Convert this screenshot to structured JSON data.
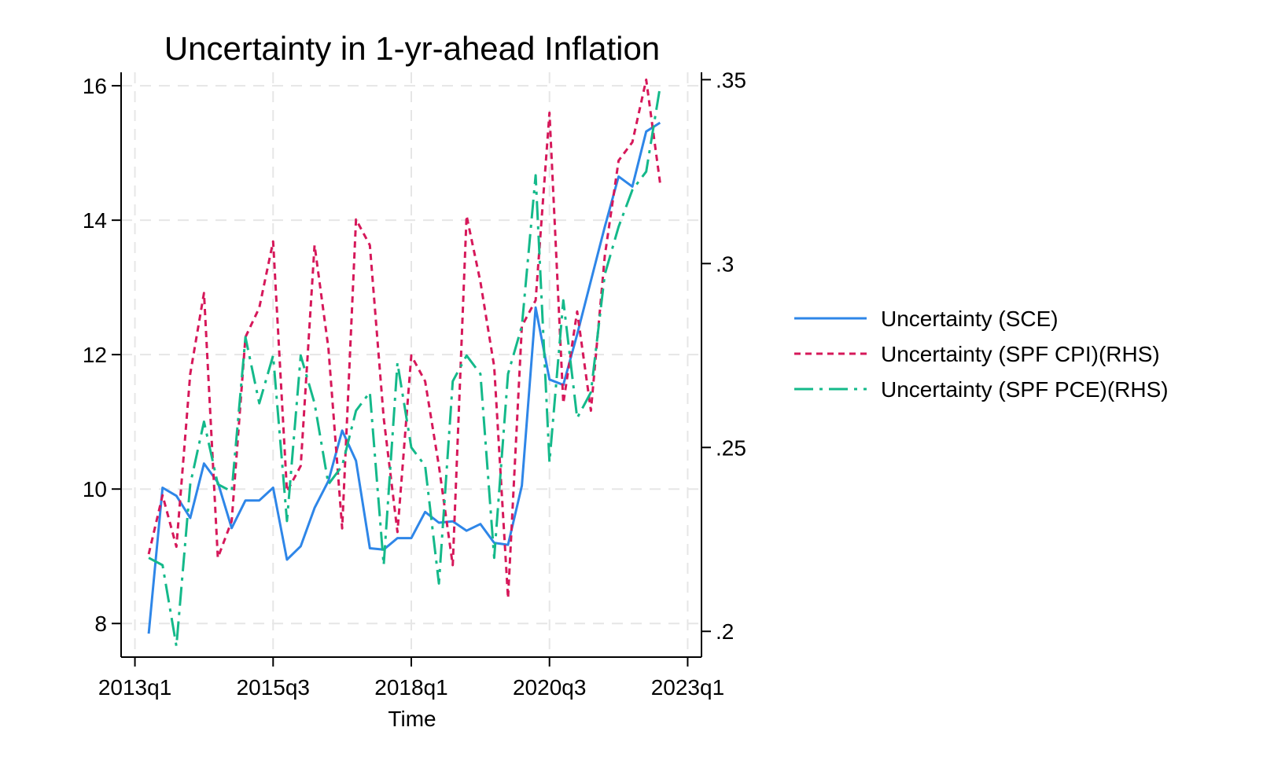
{
  "chart_data": {
    "type": "line",
    "title": "Uncertainty in 1-yr-ahead Inflation",
    "xlabel": "Time",
    "ylabel_left": "",
    "ylabel_right": "",
    "x_tick_labels": [
      "2013q1",
      "2015q3",
      "2018q1",
      "2020q3",
      "2023q1"
    ],
    "y_left_ticks": [
      "8",
      "10",
      "12",
      "14",
      "16"
    ],
    "y_right_ticks": [
      ".2",
      ".25",
      ".3",
      ".35"
    ],
    "y_left_range": [
      7.5,
      16.2
    ],
    "y_right_range": [
      0.193,
      0.352
    ],
    "x_range": [
      2012.75,
      2023.25
    ],
    "grid": true,
    "legend_position": "right",
    "colors": {
      "sce": "#2e86e8",
      "spf_cpi": "#d6185a",
      "spf_pce": "#14b98a"
    },
    "series": [
      {
        "key": "sce",
        "name": "Uncertainty (SCE)",
        "axis": "left",
        "style": "solid",
        "x": [
          2013.25,
          2013.5,
          2013.75,
          2014.0,
          2014.25,
          2014.5,
          2014.75,
          2015.0,
          2015.25,
          2015.5,
          2015.75,
          2016.0,
          2016.25,
          2016.5,
          2016.75,
          2017.0,
          2017.25,
          2017.5,
          2017.75,
          2018.0,
          2018.25,
          2018.5,
          2018.75,
          2019.0,
          2019.25,
          2019.5,
          2019.75,
          2020.0,
          2020.25,
          2020.5,
          2020.75,
          2021.0,
          2021.25,
          2021.5,
          2021.75,
          2022.0,
          2022.25,
          2022.5
        ],
        "values": [
          7.85,
          10.02,
          9.9,
          9.57,
          10.38,
          10.1,
          9.42,
          9.83,
          9.83,
          10.02,
          8.95,
          9.15,
          9.72,
          10.12,
          10.87,
          10.42,
          9.12,
          9.1,
          9.27,
          9.27,
          9.66,
          9.5,
          9.52,
          9.38,
          9.48,
          9.2,
          9.17,
          10.05,
          12.7,
          11.63,
          11.55,
          12.3,
          13.1,
          13.9,
          14.65,
          14.5,
          15.32,
          15.45
        ]
      },
      {
        "key": "spf_cpi",
        "name": "Uncertainty (SPF CPI)(RHS)",
        "axis": "right",
        "style": "dashed",
        "x": [
          2013.25,
          2013.5,
          2013.75,
          2014.0,
          2014.25,
          2014.5,
          2014.75,
          2015.0,
          2015.25,
          2015.5,
          2015.75,
          2016.0,
          2016.25,
          2016.5,
          2016.75,
          2017.0,
          2017.25,
          2017.5,
          2017.75,
          2018.0,
          2018.25,
          2018.5,
          2018.75,
          2019.0,
          2019.25,
          2019.5,
          2019.75,
          2020.0,
          2020.25,
          2020.5,
          2020.75,
          2021.0,
          2021.25,
          2021.5,
          2021.75,
          2022.0,
          2022.25,
          2022.5
        ],
        "values": [
          0.221,
          0.237,
          0.223,
          0.27,
          0.292,
          0.22,
          0.23,
          0.28,
          0.288,
          0.306,
          0.238,
          0.245,
          0.305,
          0.277,
          0.228,
          0.312,
          0.305,
          0.258,
          0.227,
          0.275,
          0.268,
          0.245,
          0.218,
          0.313,
          0.295,
          0.272,
          0.209,
          0.283,
          0.29,
          0.341,
          0.262,
          0.287,
          0.26,
          0.302,
          0.328,
          0.333,
          0.35,
          0.322
        ]
      },
      {
        "key": "spf_pce",
        "name": "Uncertainty (SPF PCE)(RHS)",
        "axis": "right",
        "style": "dashdot",
        "x": [
          2013.25,
          2013.5,
          2013.75,
          2014.0,
          2014.25,
          2014.5,
          2014.75,
          2015.0,
          2015.25,
          2015.5,
          2015.75,
          2016.0,
          2016.25,
          2016.5,
          2016.75,
          2017.0,
          2017.25,
          2017.5,
          2017.75,
          2018.0,
          2018.25,
          2018.5,
          2018.75,
          2019.0,
          2019.25,
          2019.5,
          2019.75,
          2020.0,
          2020.25,
          2020.5,
          2020.75,
          2021.0,
          2021.25,
          2021.5,
          2021.75,
          2022.0,
          2022.25,
          2022.5
        ],
        "values": [
          0.22,
          0.218,
          0.196,
          0.24,
          0.257,
          0.24,
          0.238,
          0.28,
          0.262,
          0.275,
          0.23,
          0.275,
          0.262,
          0.24,
          0.245,
          0.26,
          0.265,
          0.218,
          0.273,
          0.25,
          0.245,
          0.213,
          0.268,
          0.275,
          0.27,
          0.22,
          0.27,
          0.283,
          0.324,
          0.246,
          0.29,
          0.258,
          0.265,
          0.297,
          0.31,
          0.32,
          0.325,
          0.348
        ]
      }
    ]
  }
}
